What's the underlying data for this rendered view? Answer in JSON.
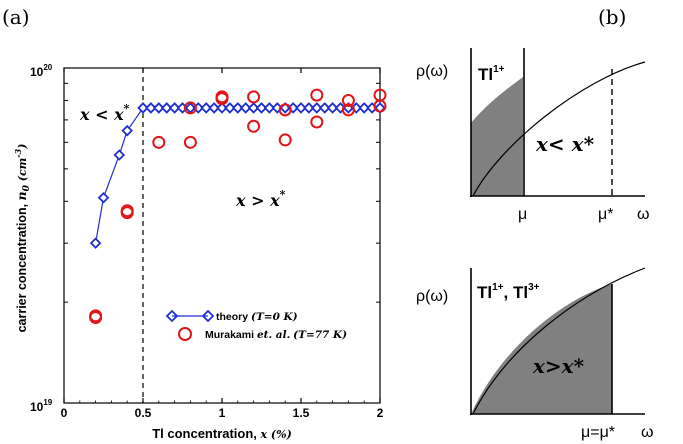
{
  "panel_a": {
    "panel_label": "(a)",
    "ylabel_main": "carrier concentration,",
    "ylabel_var": "n",
    "ylabel_sub": "0",
    "ylabel_unit": "(cm",
    "ylabel_exp": "-3",
    "ylabel_close": ")",
    "xlabel_main": "Tl concentration,",
    "xlabel_var": "x (%)",
    "ytick_top_base": "10",
    "ytick_top_exp": "20",
    "ytick_bottom_base": "10",
    "ytick_bottom_exp": "19",
    "xticks": [
      "0",
      "0.5",
      "1",
      "1.5",
      "2"
    ],
    "annot_left": "x < x",
    "annot_left_sup": "*",
    "annot_right": "x > x",
    "annot_right_sup": "*",
    "legend_theory": "theory",
    "legend_theory_cond": "(T=0 K)",
    "legend_exp": "Murakami",
    "legend_exp_ital": "et. al.",
    "legend_exp_cond": "(T=77 K)"
  },
  "panel_b": {
    "panel_label": "(b)",
    "top": {
      "yaxis_label": "ρ(ω)",
      "species": "Tl",
      "species_sup": "1+",
      "region_label": "x< x*",
      "mu_label": "μ",
      "mustar_label": "μ*",
      "omega_label": "ω"
    },
    "bottom": {
      "yaxis_label": "ρ(ω)",
      "species1": "Tl",
      "species1_sup": "1+",
      "species2": "Tl",
      "species2_sup": "3+",
      "region_label": "x>x*",
      "mu_label": "μ=μ*",
      "omega_label": "ω"
    }
  },
  "colors": {
    "theory": "#1f2fd0",
    "experiment": "#e0161a",
    "shade": "#808080"
  },
  "chart_data": {
    "type": "scatter",
    "xlabel": "Tl concentration, x (%)",
    "ylabel": "carrier concentration, n0 (cm-3)",
    "xlim": [
      0,
      2
    ],
    "ylim": [
      1e+19,
      1e+20
    ],
    "yscale": "log",
    "xticks": [
      0,
      0.5,
      1,
      1.5,
      2
    ],
    "critical_x": 0.5,
    "legend_position": "bottom-right",
    "series": [
      {
        "name": "theory (T=0 K)",
        "marker": "diamond",
        "line": true,
        "x": [
          0.2,
          0.25,
          0.35,
          0.4,
          0.5,
          0.55,
          0.6,
          0.65,
          0.7,
          0.75,
          0.8,
          0.85,
          0.9,
          0.95,
          1.0,
          1.05,
          1.1,
          1.15,
          1.2,
          1.25,
          1.3,
          1.35,
          1.4,
          1.45,
          1.5,
          1.55,
          1.6,
          1.65,
          1.7,
          1.75,
          1.8,
          1.85,
          1.9,
          1.95,
          2.0
        ],
        "y": [
          3e+19,
          4.1e+19,
          5.5e+19,
          6.5e+19,
          7.6e+19,
          7.6e+19,
          7.6e+19,
          7.6e+19,
          7.6e+19,
          7.6e+19,
          7.6e+19,
          7.6e+19,
          7.6e+19,
          7.6e+19,
          7.6e+19,
          7.6e+19,
          7.6e+19,
          7.6e+19,
          7.6e+19,
          7.6e+19,
          7.6e+19,
          7.6e+19,
          7.6e+19,
          7.6e+19,
          7.6e+19,
          7.6e+19,
          7.6e+19,
          7.6e+19,
          7.6e+19,
          7.6e+19,
          7.6e+19,
          7.6e+19,
          7.6e+19,
          7.6e+19,
          7.6e+19
        ]
      },
      {
        "name": "Murakami et. al. (T=77 K)",
        "marker": "circle",
        "line": false,
        "x": [
          0.2,
          0.2,
          0.4,
          0.4,
          0.6,
          0.8,
          0.8,
          1.0,
          1.0,
          1.2,
          1.2,
          1.4,
          1.4,
          1.6,
          1.6,
          1.8,
          1.8,
          2.0,
          2.0
        ],
        "y": [
          1.8e+19,
          1.82e+19,
          3.7e+19,
          3.75e+19,
          6e+19,
          6e+19,
          7.6e+19,
          8.1e+19,
          8.2e+19,
          6.7e+19,
          8.2e+19,
          6.1e+19,
          7.5e+19,
          6.9e+19,
          8.3e+19,
          7.5e+19,
          8e+19,
          7.7e+19,
          8.3e+19
        ]
      }
    ]
  }
}
